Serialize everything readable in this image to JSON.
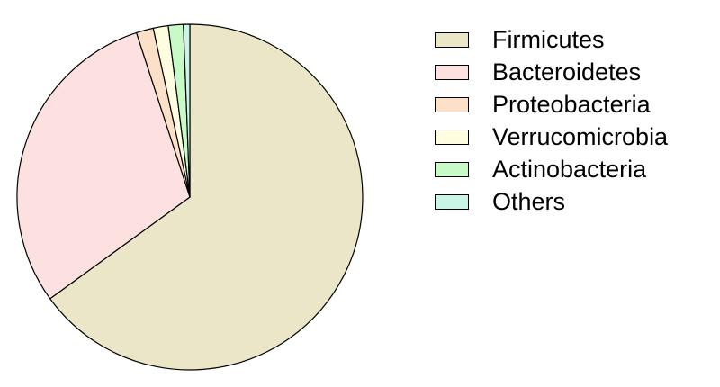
{
  "chart_data": {
    "type": "pie",
    "title": "",
    "series": [
      {
        "name": "Firmicutes",
        "value": 65.0,
        "color": "#ebe6c8"
      },
      {
        "name": "Bacteroidetes",
        "value": 30.0,
        "color": "#fde0e0"
      },
      {
        "name": "Proteobacteria",
        "value": 1.6,
        "color": "#fde0c8"
      },
      {
        "name": "Verrucomicrobia",
        "value": 1.4,
        "color": "#fffde0"
      },
      {
        "name": "Actinobacteria",
        "value": 1.4,
        "color": "#c8fac8"
      },
      {
        "name": "Others",
        "value": 0.6,
        "color": "#c8f5e4"
      }
    ],
    "start_angle": "12 o'clock",
    "direction": "clockwise",
    "legend_position": "top-right"
  }
}
